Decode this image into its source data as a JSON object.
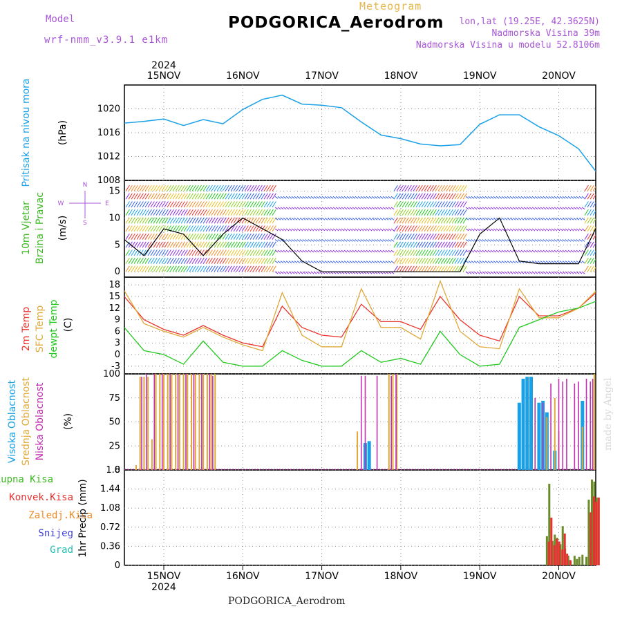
{
  "header": {
    "model_label": "Model",
    "model_value": "wrf-nmm_v3.9.1  e1km",
    "diagram_title": "Meteogram",
    "station": "PODGORICA_Aerodrom",
    "lonlat": "lon,lat (19.25E, 42.3625N)",
    "elevation": "Nadmorska Visina 39m",
    "model_elevation": "Nadmorska Visina u modelu 52.8106m"
  },
  "footer": {
    "station": "PODGORICA_Aerodrom",
    "credit": "made by Angel"
  },
  "colors": {
    "pressure": "#1aa0e6",
    "temp2m": "#e8342c",
    "sfc_temp": "#e0a838",
    "dewpoint": "#22c81e",
    "high_cloud": "#1aa0e6",
    "mid_cloud": "#e0a838",
    "low_cloud": "#c030b0",
    "total_precip": "#3cb822",
    "conv_precip": "#e83030",
    "label_purple": "#a855d6",
    "grid": "#888888"
  },
  "chart_data": [
    {
      "type": "line",
      "ylabel": "Pritisak na nivou mora",
      "unit": "(hPa)",
      "ylim": [
        1008,
        1024
      ],
      "yticks": [
        1008,
        1012,
        1016,
        1020
      ],
      "x_day_offset": [
        0,
        0.25,
        0.5,
        0.75,
        1.0,
        1.25,
        1.5,
        1.75,
        2.0,
        2.25,
        2.5,
        2.75,
        3.0,
        3.25,
        3.5,
        3.75,
        4.0,
        4.25,
        4.5,
        4.75,
        5.0,
        5.25,
        5.5,
        5.75,
        6.0
      ],
      "series": [
        {
          "name": "Pritisak na nivou mora",
          "values": [
            1017.6,
            1017.9,
            1018.3,
            1017.2,
            1018.2,
            1017.5,
            1019.9,
            1021.6,
            1022.3,
            1020.8,
            1020.6,
            1020.2,
            1017.8,
            1015.6,
            1015.0,
            1014.1,
            1013.8,
            1014.0,
            1017.4,
            1019.0,
            1019.0,
            1017.0,
            1015.5,
            1013.3,
            1009.0
          ]
        }
      ]
    },
    {
      "type": "line",
      "ylabel": "10m Vjetar Brzina i Pravac",
      "unit": "(m/s)",
      "ylim": [
        -1,
        17
      ],
      "yticks": [
        0,
        5,
        10,
        15
      ],
      "direction_legend": [
        "N",
        "E",
        "S",
        "W"
      ],
      "x_day_offset": [
        0,
        0.25,
        0.5,
        0.75,
        1.0,
        1.25,
        1.5,
        1.75,
        2.0,
        2.25,
        2.5,
        2.75,
        3.0,
        3.25,
        3.5,
        3.75,
        4.0,
        4.25,
        4.5,
        4.75,
        5.0,
        5.25,
        5.5,
        5.75,
        6.0
      ],
      "series": [
        {
          "name": "10m Vjetar",
          "values": [
            6,
            3,
            8,
            7,
            3,
            7,
            10,
            8,
            6,
            2,
            0,
            0,
            0,
            0,
            0,
            0,
            0,
            0,
            7,
            10,
            2,
            1.5,
            1.5,
            1.5,
            9
          ]
        }
      ]
    },
    {
      "type": "line",
      "ylabel": "Temp",
      "unit": "(C)",
      "ylim": [
        -5,
        20
      ],
      "yticks": [
        -3,
        0,
        3,
        6,
        9,
        12,
        15,
        18
      ],
      "x_day_offset": [
        0,
        0.25,
        0.5,
        0.75,
        1.0,
        1.25,
        1.5,
        1.75,
        2.0,
        2.25,
        2.5,
        2.75,
        3.0,
        3.25,
        3.5,
        3.75,
        4.0,
        4.25,
        4.5,
        4.75,
        5.0,
        5.25,
        5.5,
        5.75,
        6.0
      ],
      "series": [
        {
          "name": "2m Temp",
          "values": [
            15,
            9,
            6.5,
            5,
            7.5,
            5,
            3,
            2,
            12.5,
            7,
            5,
            4.5,
            13,
            8.5,
            8.5,
            6.5,
            15,
            9,
            5,
            3.5,
            15,
            10,
            10,
            12,
            16.5
          ]
        },
        {
          "name": "SFC Temp",
          "values": [
            16.5,
            8,
            6,
            4.5,
            7,
            4.5,
            2.5,
            1,
            16,
            5,
            2,
            2,
            17,
            7,
            7,
            4,
            19,
            6,
            2,
            1.5,
            17,
            9.5,
            9.5,
            12,
            17
          ]
        },
        {
          "name": "dewpt Temp",
          "values": [
            7,
            1,
            0,
            -2.5,
            3.5,
            -2,
            -3,
            -3,
            1,
            -1.5,
            -3,
            -3,
            1,
            -2,
            -1,
            -2.5,
            6,
            0,
            -3,
            -2.5,
            7,
            9,
            11,
            12,
            14
          ]
        }
      ]
    },
    {
      "type": "bar",
      "ylabel": "Oblacnost",
      "unit": "(%)",
      "ylim": [
        0,
        100
      ],
      "yticks": [
        0,
        25,
        50,
        75,
        100
      ],
      "series": [
        {
          "name": "Visoka Oblacnost",
          "points": [
            [
              3.05,
              28
            ],
            [
              3.1,
              30
            ],
            [
              5.0,
              70
            ],
            [
              5.05,
              95
            ],
            [
              5.1,
              97
            ],
            [
              5.15,
              97
            ],
            [
              5.25,
              70
            ],
            [
              5.3,
              72
            ],
            [
              5.35,
              60
            ],
            [
              5.45,
              20
            ],
            [
              5.8,
              72
            ]
          ]
        },
        {
          "name": "Srednja Oblacnost",
          "points": [
            [
              0.15,
              5
            ],
            [
              0.2,
              97
            ],
            [
              0.25,
              97
            ],
            [
              0.3,
              97
            ],
            [
              0.35,
              32
            ],
            [
              0.4,
              100
            ],
            [
              0.45,
              100
            ],
            [
              0.5,
              100
            ],
            [
              0.55,
              100
            ],
            [
              0.6,
              100
            ],
            [
              0.65,
              100
            ],
            [
              0.7,
              100
            ],
            [
              0.75,
              100
            ],
            [
              0.8,
              100
            ],
            [
              0.85,
              100
            ],
            [
              0.9,
              100
            ],
            [
              0.95,
              100
            ],
            [
              1.0,
              100
            ],
            [
              1.05,
              100
            ],
            [
              1.1,
              100
            ],
            [
              1.15,
              100
            ],
            [
              2.95,
              40
            ],
            [
              3.35,
              100
            ],
            [
              3.4,
              100
            ],
            [
              3.45,
              100
            ],
            [
              5.35,
              55
            ],
            [
              5.45,
              75
            ],
            [
              5.5,
              40
            ],
            [
              5.8,
              45
            ],
            [
              5.95,
              100
            ]
          ]
        },
        {
          "name": "Niska Oblacnost",
          "points": [
            [
              0.22,
              97
            ],
            [
              0.28,
              100
            ],
            [
              0.38,
              100
            ],
            [
              0.48,
              100
            ],
            [
              0.58,
              100
            ],
            [
              0.68,
              100
            ],
            [
              0.78,
              100
            ],
            [
              0.88,
              100
            ],
            [
              0.98,
              100
            ],
            [
              1.08,
              100
            ],
            [
              1.12,
              98
            ],
            [
              3.0,
              98
            ],
            [
              3.05,
              98
            ],
            [
              3.2,
              98
            ],
            [
              3.38,
              98
            ],
            [
              3.44,
              100
            ],
            [
              5.2,
              75
            ],
            [
              5.3,
              70
            ],
            [
              5.4,
              90
            ],
            [
              5.5,
              95
            ],
            [
              5.55,
              92
            ],
            [
              5.6,
              95
            ],
            [
              5.7,
              90
            ],
            [
              5.75,
              92
            ],
            [
              5.85,
              95
            ],
            [
              5.9,
              92
            ],
            [
              5.93,
              95
            ]
          ]
        }
      ]
    },
    {
      "type": "bar",
      "ylabel": "1hr Precip",
      "unit": "(mm)",
      "ylim": [
        0,
        1.8
      ],
      "yticks": [
        0,
        0.36,
        0.72,
        1.08,
        1.44,
        1.8
      ],
      "legend": [
        "Ukupna Kisa",
        "Konvek.Kisa",
        "Zaledj.Kisa",
        "Snijeg",
        "Grad"
      ],
      "series": [
        {
          "name": "Ukupna Kisa",
          "points": [
            [
              5.35,
              0.55
            ],
            [
              5.38,
              1.54
            ],
            [
              5.42,
              0.46
            ],
            [
              5.45,
              0.58
            ],
            [
              5.48,
              0.52
            ],
            [
              5.52,
              0.4
            ],
            [
              5.55,
              0.74
            ],
            [
              5.58,
              0.32
            ],
            [
              5.62,
              0.18
            ],
            [
              5.65,
              0.08
            ],
            [
              5.7,
              0.18
            ],
            [
              5.73,
              0.12
            ],
            [
              5.76,
              0.16
            ],
            [
              5.8,
              0.2
            ],
            [
              5.85,
              0.16
            ],
            [
              5.88,
              1.24
            ],
            [
              5.92,
              1.62
            ],
            [
              5.95,
              1.58
            ],
            [
              5.98,
              1.28
            ]
          ]
        },
        {
          "name": "Konvek.Kisa",
          "points": [
            [
              5.35,
              0.45
            ],
            [
              5.38,
              0.9
            ],
            [
              5.42,
              0.38
            ],
            [
              5.45,
              0.5
            ],
            [
              5.48,
              0.45
            ],
            [
              5.52,
              0.3
            ],
            [
              5.55,
              0.6
            ],
            [
              5.58,
              0.22
            ],
            [
              5.62,
              0.1
            ],
            [
              5.88,
              1.0
            ],
            [
              5.92,
              1.3
            ],
            [
              5.95,
              1.2
            ],
            [
              5.98,
              1.28
            ]
          ]
        }
      ]
    }
  ],
  "panels": {
    "pressure": {
      "ylabel": "Pritisak na nivou mora",
      "unit": "(hPa)"
    },
    "wind": {
      "ylabel1": "10m Vjetar",
      "ylabel2": "Brzina i Pravac",
      "unit": "(m/s)"
    },
    "temp": {
      "l1": "2m Temp",
      "l2": "SFC Temp",
      "l3": "dewpt Temp",
      "unit": "(C)"
    },
    "cloud": {
      "l1": "Visoka Oblacnost",
      "l2": "Srednja Oblacnost",
      "l3": "Niska Oblacnost",
      "unit": "(%)"
    },
    "precip": {
      "unit": "1hr Precip (mm)",
      "legend": [
        "Ukupna Kisa",
        "Konvek.Kisa",
        "Zaledj.Kisa",
        "Snijeg",
        "Grad"
      ]
    }
  },
  "x_axis": {
    "year": "2024",
    "days": [
      "15NOV",
      "16NOV",
      "17NOV",
      "18NOV",
      "19NOV",
      "20NOV"
    ]
  }
}
